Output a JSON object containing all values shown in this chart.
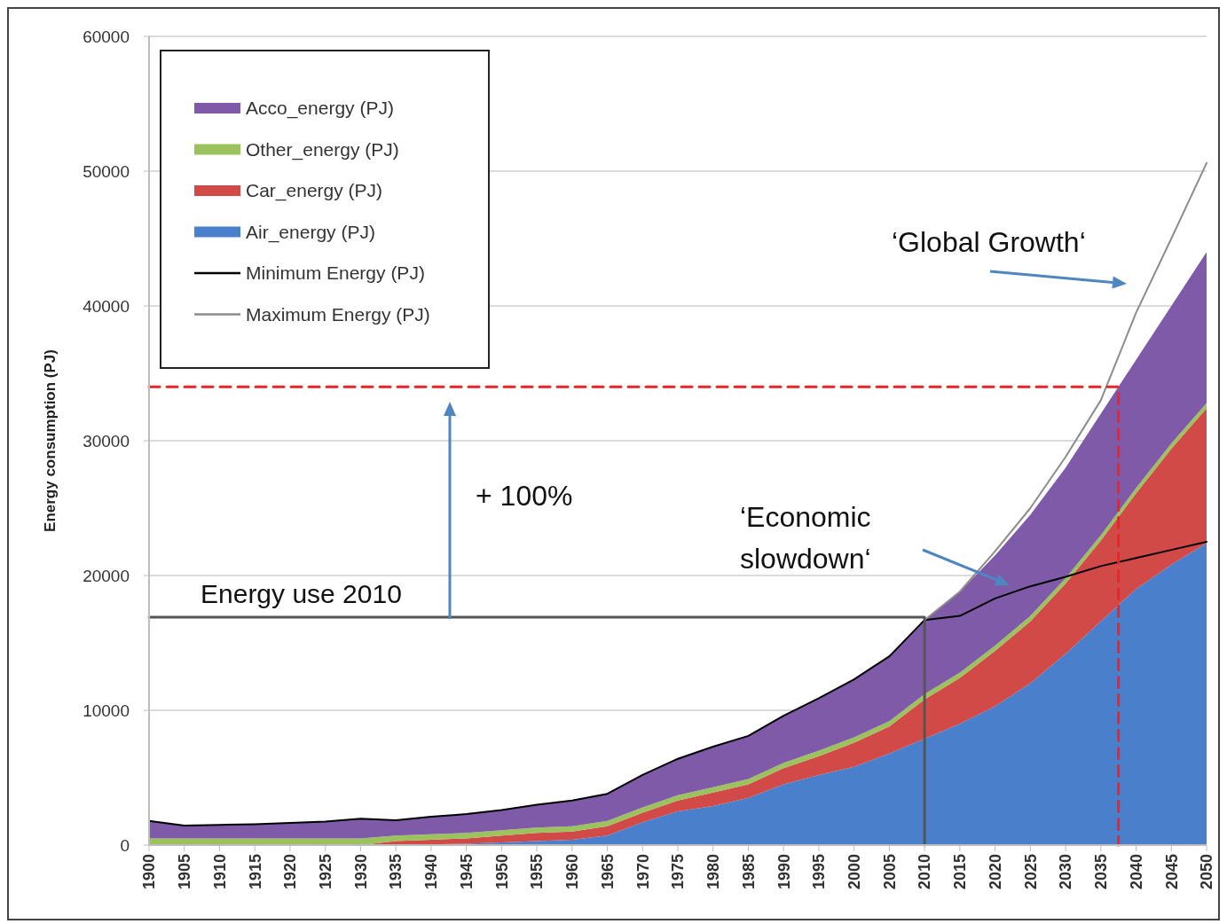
{
  "chart_data": {
    "type": "area",
    "stacked": true,
    "ylabel": "Energy consumption (PJ)",
    "x": [
      1900,
      1905,
      1910,
      1915,
      1920,
      1925,
      1930,
      1935,
      1940,
      1945,
      1950,
      1955,
      1960,
      1965,
      1970,
      1975,
      1980,
      1985,
      1990,
      1995,
      2000,
      2005,
      2010,
      2015,
      2020,
      2025,
      2030,
      2035,
      2040,
      2045,
      2050
    ],
    "xlim": [
      1900,
      2050
    ],
    "xticks": [
      1900,
      1905,
      1910,
      1915,
      1920,
      1925,
      1930,
      1935,
      1940,
      1945,
      1950,
      1955,
      1960,
      1965,
      1970,
      1975,
      1980,
      1985,
      1990,
      1995,
      2000,
      2005,
      2010,
      2015,
      2020,
      2025,
      2030,
      2035,
      2040,
      2045,
      2050
    ],
    "ylim": [
      0,
      60000
    ],
    "yticks": [
      0,
      10000,
      20000,
      30000,
      40000,
      50000,
      60000
    ],
    "grid": "y",
    "legend": "top left",
    "series": [
      {
        "name": "Air_energy (PJ)",
        "color": "#4a7fcc",
        "values": [
          0,
          0,
          0,
          0,
          0,
          0,
          0,
          0,
          50,
          100,
          200,
          300,
          400,
          700,
          1700,
          2500,
          2900,
          3500,
          4500,
          5200,
          5800,
          6800,
          7900,
          9000,
          10300,
          12000,
          14200,
          16600,
          19000,
          20800,
          22400
        ]
      },
      {
        "name": "Car_energy (PJ)",
        "color": "#d24a48",
        "values": [
          0,
          0,
          0,
          0,
          0,
          0,
          0,
          300,
          350,
          400,
          500,
          600,
          600,
          700,
          700,
          800,
          1000,
          1000,
          1200,
          1400,
          1800,
          2000,
          2900,
          3400,
          4100,
          4600,
          5200,
          6000,
          7100,
          8600,
          10000
        ]
      },
      {
        "name": "Other_energy (PJ)",
        "color": "#9bc25c",
        "values": [
          500,
          500,
          500,
          500,
          500,
          500,
          500,
          400,
          400,
          400,
          400,
          400,
          400,
          400,
          400,
          400,
          400,
          400,
          400,
          400,
          400,
          400,
          400,
          400,
          400,
          400,
          400,
          400,
          400,
          400,
          400
        ]
      },
      {
        "name": "Acco_energy (PJ)",
        "color": "#7e5aa8",
        "values": [
          1300,
          950,
          1000,
          1050,
          1150,
          1250,
          1450,
          1150,
          1300,
          1400,
          1500,
          1700,
          1900,
          2000,
          2400,
          2700,
          3000,
          3200,
          3500,
          3900,
          4300,
          4800,
          5500,
          6000,
          6700,
          7500,
          8200,
          9000,
          9500,
          10200,
          11200
        ]
      },
      {
        "name": "Minimum Energy (PJ)",
        "type": "line",
        "color": "#000000",
        "x": [
          1900,
          1905,
          1910,
          1915,
          1920,
          1925,
          1930,
          1935,
          1940,
          1945,
          1950,
          1955,
          1960,
          1965,
          1970,
          1975,
          1980,
          1985,
          1990,
          1995,
          2000,
          2005,
          2010,
          2015,
          2020,
          2025,
          2030,
          2035,
          2040,
          2045,
          2050
        ],
        "values": [
          1800,
          1450,
          1500,
          1550,
          1650,
          1750,
          1950,
          1850,
          2100,
          2300,
          2600,
          3000,
          3300,
          3800,
          5200,
          6400,
          7300,
          8100,
          9600,
          10900,
          12300,
          14000,
          16700,
          17000,
          18300,
          19200,
          19900,
          20700,
          21300,
          21900,
          22500
        ]
      },
      {
        "name": "Maximum Energy (PJ)",
        "type": "line",
        "color": "#8c8c8c",
        "x": [
          2010,
          2015,
          2020,
          2025,
          2030,
          2035,
          2040,
          2045,
          2050
        ],
        "values": [
          16700,
          18800,
          21800,
          25000,
          28800,
          33000,
          39500,
          45000,
          50600
        ]
      },
      {
        "type": "line",
        "color": "#555555",
        "x": [
          1900,
          2010,
          2010
        ],
        "values": [
          16900,
          16900,
          0
        ]
      },
      {
        "type": "line",
        "color": "#e8262a",
        "line_style": "dashed",
        "x": [
          1900,
          2037.5,
          2037.5
        ],
        "values": [
          34000,
          34000,
          0
        ]
      }
    ],
    "annotations": [
      {
        "text": "Energy use 2010",
        "x": 1900,
        "y": 16900
      },
      "+ 100%",
      "‘Economic slowdown‘",
      "‘Global Growth‘"
    ]
  }
}
